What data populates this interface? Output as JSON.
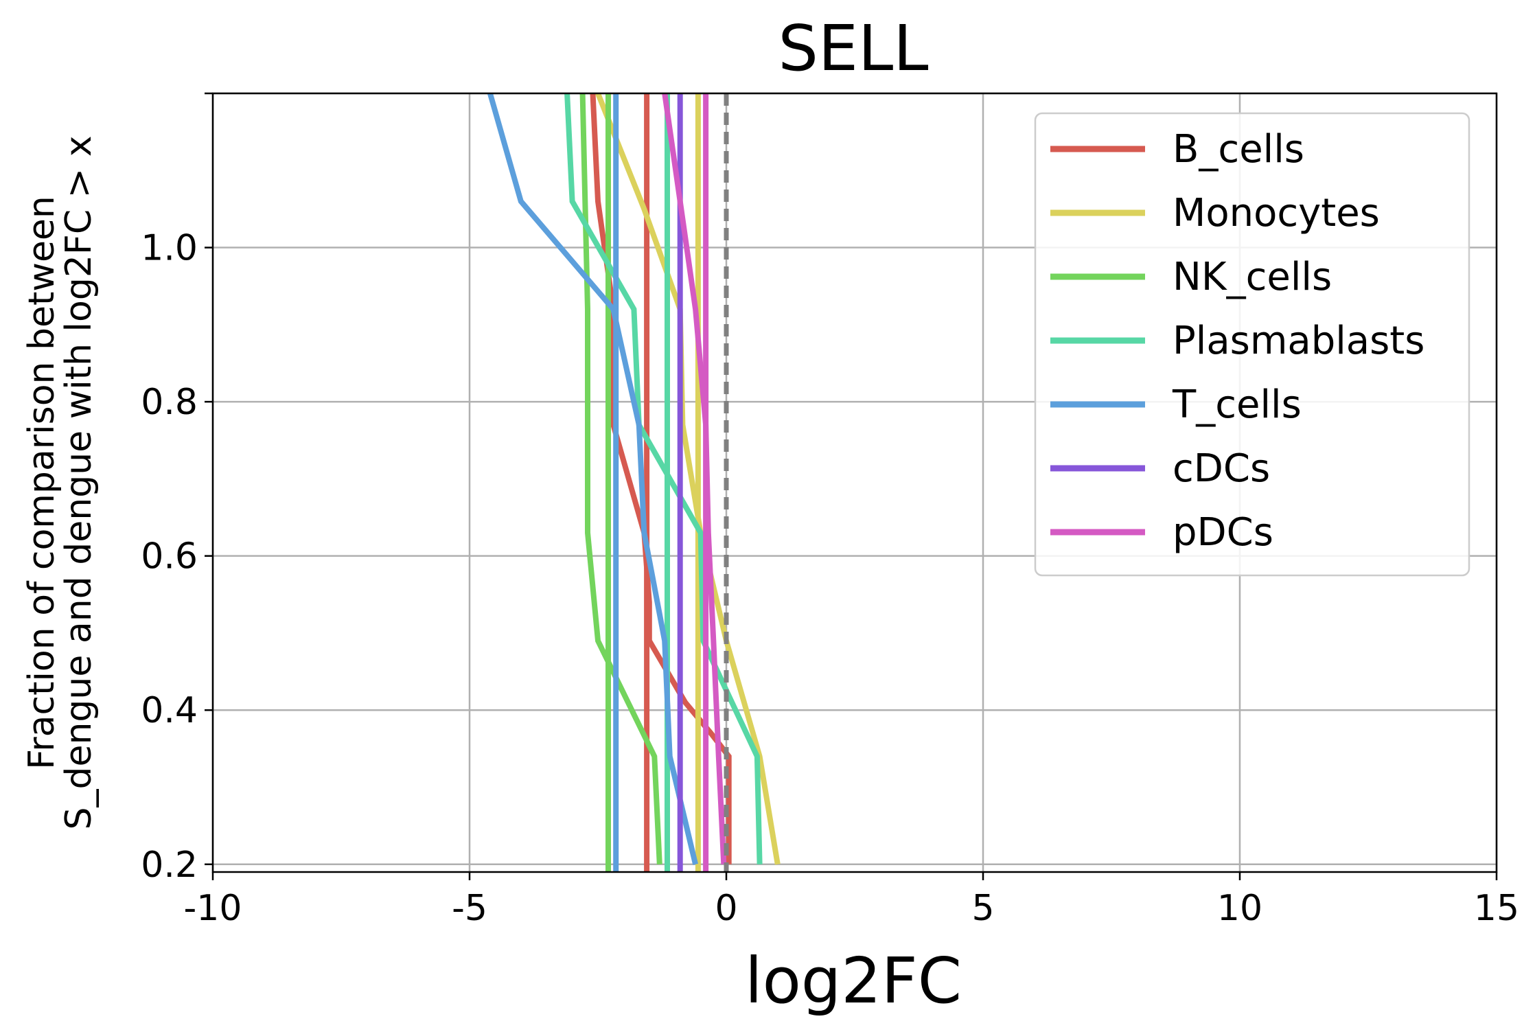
{
  "chart_data": {
    "type": "line",
    "title": "SELL",
    "xlabel": "log2FC",
    "ylabel": [
      "Fraction of comparison between",
      "S_dengue and dengue with log2FC > x"
    ],
    "xlim": [
      -10,
      15
    ],
    "ylim": [
      0.19,
      1.2
    ],
    "xticks": [
      -10,
      -5,
      0,
      5,
      10,
      15
    ],
    "xtick_labels": [
      "-10",
      "-5",
      "0",
      "5",
      "10",
      "15"
    ],
    "yticks": [
      0.2,
      0.4,
      0.6,
      0.8,
      1.0
    ],
    "ytick_labels": [
      "0.2",
      "0.4",
      "0.6",
      "0.8",
      "1.0"
    ],
    "grid": true,
    "legend_position": "top-right",
    "reference_line": {
      "x": 0,
      "style": "dashed",
      "color": "#808080"
    },
    "series": [
      {
        "name": "B_cells",
        "color": "#d65a50",
        "points": [
          [
            -2.6,
            1.2
          ],
          [
            -2.5,
            1.06
          ],
          [
            -2.2,
            0.92
          ],
          [
            -2.2,
            0.77
          ],
          [
            -1.6,
            0.63
          ],
          [
            -1.5,
            0.54
          ],
          [
            -1.5,
            0.49
          ],
          [
            -0.8,
            0.41
          ],
          [
            -0.3,
            0.37
          ],
          [
            0.05,
            0.34
          ],
          [
            0.05,
            0.2
          ]
        ]
      },
      {
        "name": "B_cells",
        "color": "#d65a50",
        "points": [
          [
            -1.55,
            1.2
          ],
          [
            -1.55,
            0.19
          ]
        ]
      },
      {
        "name": "Monocytes",
        "color": "#dbd15c",
        "points": [
          [
            -2.5,
            1.2
          ],
          [
            -1.6,
            1.05
          ],
          [
            -0.9,
            0.92
          ],
          [
            -0.85,
            0.77
          ],
          [
            -0.5,
            0.63
          ],
          [
            0.0,
            0.49
          ],
          [
            0.65,
            0.34
          ],
          [
            1.0,
            0.2
          ]
        ]
      },
      {
        "name": "Monocytes",
        "color": "#dbd15c",
        "points": [
          [
            -0.55,
            1.2
          ],
          [
            -0.55,
            0.19
          ]
        ]
      },
      {
        "name": "NK_cells",
        "color": "#73d45c",
        "points": [
          [
            -2.8,
            1.2
          ],
          [
            -2.7,
            0.92
          ],
          [
            -2.7,
            0.63
          ],
          [
            -2.5,
            0.49
          ],
          [
            -1.4,
            0.34
          ],
          [
            -1.3,
            0.2
          ]
        ]
      },
      {
        "name": "NK_cells",
        "color": "#73d45c",
        "points": [
          [
            -2.3,
            1.2
          ],
          [
            -2.3,
            0.19
          ]
        ]
      },
      {
        "name": "Plasmablasts",
        "color": "#57d7a5",
        "points": [
          [
            -3.1,
            1.2
          ],
          [
            -3.0,
            1.06
          ],
          [
            -1.8,
            0.92
          ],
          [
            -1.7,
            0.77
          ],
          [
            -0.5,
            0.63
          ],
          [
            -0.45,
            0.49
          ],
          [
            0.6,
            0.34
          ],
          [
            0.65,
            0.2
          ]
        ]
      },
      {
        "name": "Plasmablasts",
        "color": "#57d7a5",
        "points": [
          [
            -1.15,
            1.2
          ],
          [
            -1.15,
            0.19
          ]
        ]
      },
      {
        "name": "T_cells",
        "color": "#5c9fdc",
        "points": [
          [
            -4.6,
            1.2
          ],
          [
            -4.0,
            1.06
          ],
          [
            -2.2,
            0.92
          ],
          [
            -1.7,
            0.77
          ],
          [
            -1.6,
            0.63
          ],
          [
            -1.2,
            0.49
          ],
          [
            -1.1,
            0.34
          ],
          [
            -0.6,
            0.2
          ]
        ]
      },
      {
        "name": "T_cells",
        "color": "#5c9fdc",
        "points": [
          [
            -2.15,
            1.2
          ],
          [
            -2.15,
            0.19
          ]
        ]
      },
      {
        "name": "cDCs",
        "color": "#8656d9",
        "points": [
          [
            -0.9,
            1.2
          ],
          [
            -0.9,
            0.19
          ]
        ]
      },
      {
        "name": "pDCs",
        "color": "#d45ac3",
        "points": [
          [
            -1.2,
            1.2
          ],
          [
            -0.9,
            1.06
          ],
          [
            -0.6,
            0.92
          ],
          [
            -0.4,
            0.77
          ],
          [
            -0.35,
            0.63
          ],
          [
            -0.25,
            0.49
          ],
          [
            -0.15,
            0.34
          ],
          [
            -0.05,
            0.2
          ]
        ]
      },
      {
        "name": "pDCs",
        "color": "#d45ac3",
        "points": [
          [
            -0.4,
            1.2
          ],
          [
            -0.4,
            0.19
          ]
        ]
      }
    ],
    "legend": [
      {
        "name": "B_cells",
        "color": "#d65a50"
      },
      {
        "name": "Monocytes",
        "color": "#dbd15c"
      },
      {
        "name": "NK_cells",
        "color": "#73d45c"
      },
      {
        "name": "Plasmablasts",
        "color": "#57d7a5"
      },
      {
        "name": "T_cells",
        "color": "#5c9fdc"
      },
      {
        "name": "cDCs",
        "color": "#8656d9"
      },
      {
        "name": "pDCs",
        "color": "#d45ac3"
      }
    ]
  }
}
